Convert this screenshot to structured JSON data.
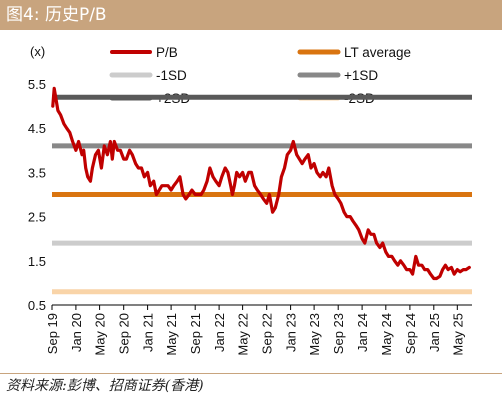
{
  "header": {
    "title": "图4:  历史P/B"
  },
  "footer": {
    "source": "资料来源:彭博、招商证券(香港)"
  },
  "colors": {
    "banner": "#c8a47e",
    "pb": "#c00000",
    "lt_average": "#d97410",
    "minus_1sd": "#cccccc",
    "plus_1sd": "#888888",
    "plus_2sd": "#595959",
    "minus_2sd": "#f9d4a8"
  },
  "chart_data": {
    "type": "line",
    "title": "",
    "xlabel": "",
    "ylabel": "(x)",
    "ylim": [
      0.5,
      5.5
    ],
    "yticks": [
      "0.5",
      "1.5",
      "2.5",
      "3.5",
      "4.5",
      "5.5"
    ],
    "xlim": [
      "2019-09-01",
      "2025-07-15"
    ],
    "xticks": [
      {
        "label": "Sep 19",
        "date": "2019-09-01"
      },
      {
        "label": "Jan 20",
        "date": "2020-01-01"
      },
      {
        "label": "May 20",
        "date": "2020-05-01"
      },
      {
        "label": "Sep 20",
        "date": "2020-09-01"
      },
      {
        "label": "Jan 21",
        "date": "2021-01-01"
      },
      {
        "label": "May 21",
        "date": "2021-05-01"
      },
      {
        "label": "Sep 21",
        "date": "2021-09-01"
      },
      {
        "label": "Jan 22",
        "date": "2022-01-01"
      },
      {
        "label": "May 22",
        "date": "2022-05-01"
      },
      {
        "label": "Sep 22",
        "date": "2022-09-01"
      },
      {
        "label": "Jan 23",
        "date": "2023-01-01"
      },
      {
        "label": "May 23",
        "date": "2023-05-01"
      },
      {
        "label": "Sep 23",
        "date": "2023-09-01"
      },
      {
        "label": "Jan 24",
        "date": "2024-01-01"
      },
      {
        "label": "May 24",
        "date": "2024-05-01"
      },
      {
        "label": "Sep 24",
        "date": "2024-09-01"
      },
      {
        "label": "Jan 25",
        "date": "2025-01-01"
      },
      {
        "label": "May 25",
        "date": "2025-05-01"
      }
    ],
    "legend": [
      {
        "name": "P/B",
        "key": "pb"
      },
      {
        "name": "LT average",
        "key": "lt_average"
      },
      {
        "name": "-1SD",
        "key": "minus_1sd"
      },
      {
        "name": "+1SD",
        "key": "plus_1sd"
      },
      {
        "name": "+2SD",
        "key": "plus_2sd"
      },
      {
        "name": "-2SD",
        "key": "minus_2sd"
      }
    ],
    "reference_lines": [
      {
        "name": "+2SD",
        "key": "plus_2sd",
        "value": 5.2
      },
      {
        "name": "+1SD",
        "key": "plus_1sd",
        "value": 4.1
      },
      {
        "name": "LT average",
        "key": "lt_average",
        "value": 3.0
      },
      {
        "name": "-1SD",
        "key": "minus_1sd",
        "value": 1.9
      },
      {
        "name": "-2SD",
        "key": "minus_2sd",
        "value": 0.8
      }
    ],
    "series": [
      {
        "name": "P/B",
        "key": "pb",
        "points": [
          [
            "2019-09-05",
            5.0
          ],
          [
            "2019-09-12",
            5.4
          ],
          [
            "2019-09-20",
            5.2
          ],
          [
            "2019-10-01",
            4.9
          ],
          [
            "2019-10-15",
            4.8
          ],
          [
            "2019-11-01",
            4.6
          ],
          [
            "2019-11-15",
            4.5
          ],
          [
            "2019-12-01",
            4.4
          ],
          [
            "2019-12-15",
            4.2
          ],
          [
            "2020-01-01",
            4.0
          ],
          [
            "2020-01-15",
            4.2
          ],
          [
            "2020-02-01",
            3.9
          ],
          [
            "2020-02-10",
            4.0
          ],
          [
            "2020-02-20",
            3.6
          ],
          [
            "2020-03-01",
            3.4
          ],
          [
            "2020-03-15",
            3.3
          ],
          [
            "2020-03-25",
            3.6
          ],
          [
            "2020-04-10",
            3.9
          ],
          [
            "2020-04-25",
            4.0
          ],
          [
            "2020-05-10",
            3.6
          ],
          [
            "2020-05-25",
            4.1
          ],
          [
            "2020-06-10",
            3.9
          ],
          [
            "2020-06-25",
            4.2
          ],
          [
            "2020-07-05",
            3.8
          ],
          [
            "2020-07-15",
            4.2
          ],
          [
            "2020-08-01",
            4.0
          ],
          [
            "2020-08-15",
            4.0
          ],
          [
            "2020-09-01",
            3.8
          ],
          [
            "2020-09-15",
            3.8
          ],
          [
            "2020-10-01",
            4.0
          ],
          [
            "2020-10-15",
            3.9
          ],
          [
            "2020-11-01",
            3.7
          ],
          [
            "2020-11-15",
            3.6
          ],
          [
            "2020-12-01",
            3.6
          ],
          [
            "2020-12-15",
            3.4
          ],
          [
            "2021-01-01",
            3.5
          ],
          [
            "2021-01-15",
            3.2
          ],
          [
            "2021-02-01",
            3.3
          ],
          [
            "2021-02-15",
            3.0
          ],
          [
            "2021-03-01",
            3.1
          ],
          [
            "2021-03-15",
            3.2
          ],
          [
            "2021-04-01",
            3.2
          ],
          [
            "2021-04-15",
            3.2
          ],
          [
            "2021-05-01",
            3.1
          ],
          [
            "2021-05-15",
            3.2
          ],
          [
            "2021-06-01",
            3.3
          ],
          [
            "2021-06-15",
            3.4
          ],
          [
            "2021-07-01",
            3.0
          ],
          [
            "2021-07-15",
            2.9
          ],
          [
            "2021-08-01",
            3.0
          ],
          [
            "2021-08-15",
            3.1
          ],
          [
            "2021-09-01",
            3.0
          ],
          [
            "2021-09-15",
            3.0
          ],
          [
            "2021-10-01",
            3.0
          ],
          [
            "2021-10-15",
            3.1
          ],
          [
            "2021-11-01",
            3.3
          ],
          [
            "2021-11-15",
            3.6
          ],
          [
            "2021-12-01",
            3.4
          ],
          [
            "2021-12-15",
            3.3
          ],
          [
            "2022-01-01",
            3.2
          ],
          [
            "2022-01-15",
            3.4
          ],
          [
            "2022-02-01",
            3.6
          ],
          [
            "2022-02-15",
            3.5
          ],
          [
            "2022-03-01",
            3.2
          ],
          [
            "2022-03-10",
            3.0
          ],
          [
            "2022-03-20",
            3.2
          ],
          [
            "2022-04-01",
            3.5
          ],
          [
            "2022-04-15",
            3.4
          ],
          [
            "2022-05-01",
            3.5
          ],
          [
            "2022-05-15",
            3.3
          ],
          [
            "2022-06-01",
            3.5
          ],
          [
            "2022-06-15",
            3.5
          ],
          [
            "2022-07-01",
            3.2
          ],
          [
            "2022-07-15",
            3.1
          ],
          [
            "2022-08-01",
            3.0
          ],
          [
            "2022-08-15",
            2.9
          ],
          [
            "2022-09-01",
            2.8
          ],
          [
            "2022-09-15",
            3.0
          ],
          [
            "2022-10-01",
            2.6
          ],
          [
            "2022-10-15",
            2.7
          ],
          [
            "2022-11-01",
            3.0
          ],
          [
            "2022-11-15",
            3.4
          ],
          [
            "2022-12-01",
            3.6
          ],
          [
            "2022-12-15",
            3.9
          ],
          [
            "2023-01-01",
            4.0
          ],
          [
            "2023-01-15",
            4.2
          ],
          [
            "2023-02-01",
            3.9
          ],
          [
            "2023-02-15",
            3.8
          ],
          [
            "2023-03-01",
            3.7
          ],
          [
            "2023-03-15",
            3.8
          ],
          [
            "2023-04-01",
            3.9
          ],
          [
            "2023-04-15",
            3.6
          ],
          [
            "2023-05-01",
            3.7
          ],
          [
            "2023-05-15",
            3.5
          ],
          [
            "2023-06-01",
            3.4
          ],
          [
            "2023-06-15",
            3.5
          ],
          [
            "2023-07-01",
            3.4
          ],
          [
            "2023-07-15",
            3.6
          ],
          [
            "2023-08-01",
            3.2
          ],
          [
            "2023-08-15",
            3.0
          ],
          [
            "2023-09-01",
            2.9
          ],
          [
            "2023-09-15",
            2.8
          ],
          [
            "2023-10-01",
            2.6
          ],
          [
            "2023-10-15",
            2.5
          ],
          [
            "2023-11-01",
            2.5
          ],
          [
            "2023-11-15",
            2.4
          ],
          [
            "2023-12-01",
            2.3
          ],
          [
            "2023-12-15",
            2.2
          ],
          [
            "2024-01-01",
            2.0
          ],
          [
            "2024-01-15",
            1.9
          ],
          [
            "2024-02-01",
            2.2
          ],
          [
            "2024-02-15",
            2.1
          ],
          [
            "2024-03-01",
            2.1
          ],
          [
            "2024-03-15",
            1.9
          ],
          [
            "2024-04-01",
            1.8
          ],
          [
            "2024-04-15",
            1.9
          ],
          [
            "2024-05-01",
            1.7
          ],
          [
            "2024-05-15",
            1.6
          ],
          [
            "2024-06-01",
            1.6
          ],
          [
            "2024-06-15",
            1.5
          ],
          [
            "2024-07-01",
            1.4
          ],
          [
            "2024-07-15",
            1.5
          ],
          [
            "2024-08-01",
            1.4
          ],
          [
            "2024-08-15",
            1.3
          ],
          [
            "2024-09-01",
            1.3
          ],
          [
            "2024-09-15",
            1.2
          ],
          [
            "2024-10-01",
            1.6
          ],
          [
            "2024-10-15",
            1.4
          ],
          [
            "2024-11-01",
            1.4
          ],
          [
            "2024-11-15",
            1.3
          ],
          [
            "2024-12-01",
            1.3
          ],
          [
            "2024-12-15",
            1.2
          ],
          [
            "2025-01-01",
            1.1
          ],
          [
            "2025-01-15",
            1.1
          ],
          [
            "2025-02-01",
            1.15
          ],
          [
            "2025-02-15",
            1.3
          ],
          [
            "2025-03-01",
            1.4
          ],
          [
            "2025-03-15",
            1.3
          ],
          [
            "2025-04-01",
            1.35
          ],
          [
            "2025-04-15",
            1.2
          ],
          [
            "2025-05-01",
            1.3
          ],
          [
            "2025-05-15",
            1.25
          ],
          [
            "2025-06-01",
            1.3
          ],
          [
            "2025-06-15",
            1.3
          ],
          [
            "2025-07-01",
            1.35
          ]
        ]
      }
    ]
  }
}
